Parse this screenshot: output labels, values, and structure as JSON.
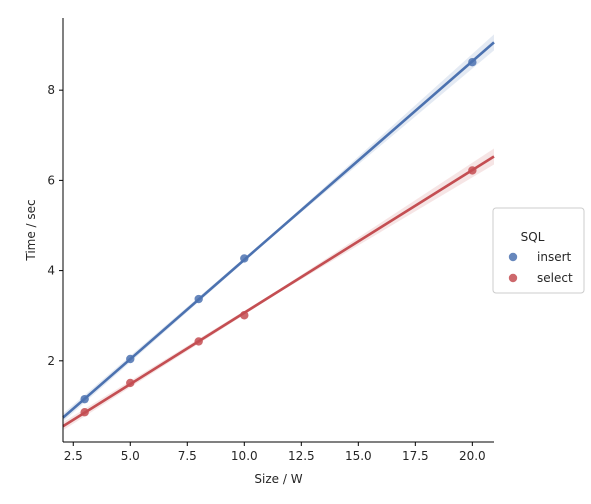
{
  "chart_data": {
    "type": "scatter",
    "xlabel": "Size / W",
    "ylabel": "Time / sec",
    "xlim": [
      2.05,
      20.95
    ],
    "ylim": [
      0.2,
      9.6
    ],
    "xticks": [
      "2.5",
      "5.0",
      "7.5",
      "10.0",
      "12.5",
      "15.0",
      "17.5",
      "20.0"
    ],
    "yticks": [
      "2",
      "4",
      "6",
      "8"
    ],
    "grid": false,
    "legend": {
      "title": "SQL",
      "placement": "center-right"
    },
    "series": [
      {
        "name": "insert",
        "color": "#4c72b0",
        "x": [
          3,
          5,
          8,
          10,
          20
        ],
        "y": [
          1.15,
          2.04,
          3.37,
          4.27,
          8.62
        ],
        "fit_line": {
          "x": [
            2.05,
            20.95
          ],
          "y": [
            0.74,
            9.06
          ]
        }
      },
      {
        "name": "select",
        "color": "#c44e52",
        "x": [
          3,
          5,
          8,
          10,
          20
        ],
        "y": [
          0.86,
          1.51,
          2.43,
          3.01,
          6.22
        ],
        "fit_line": {
          "x": [
            2.05,
            20.95
          ],
          "y": [
            0.55,
            6.53
          ]
        }
      }
    ]
  }
}
